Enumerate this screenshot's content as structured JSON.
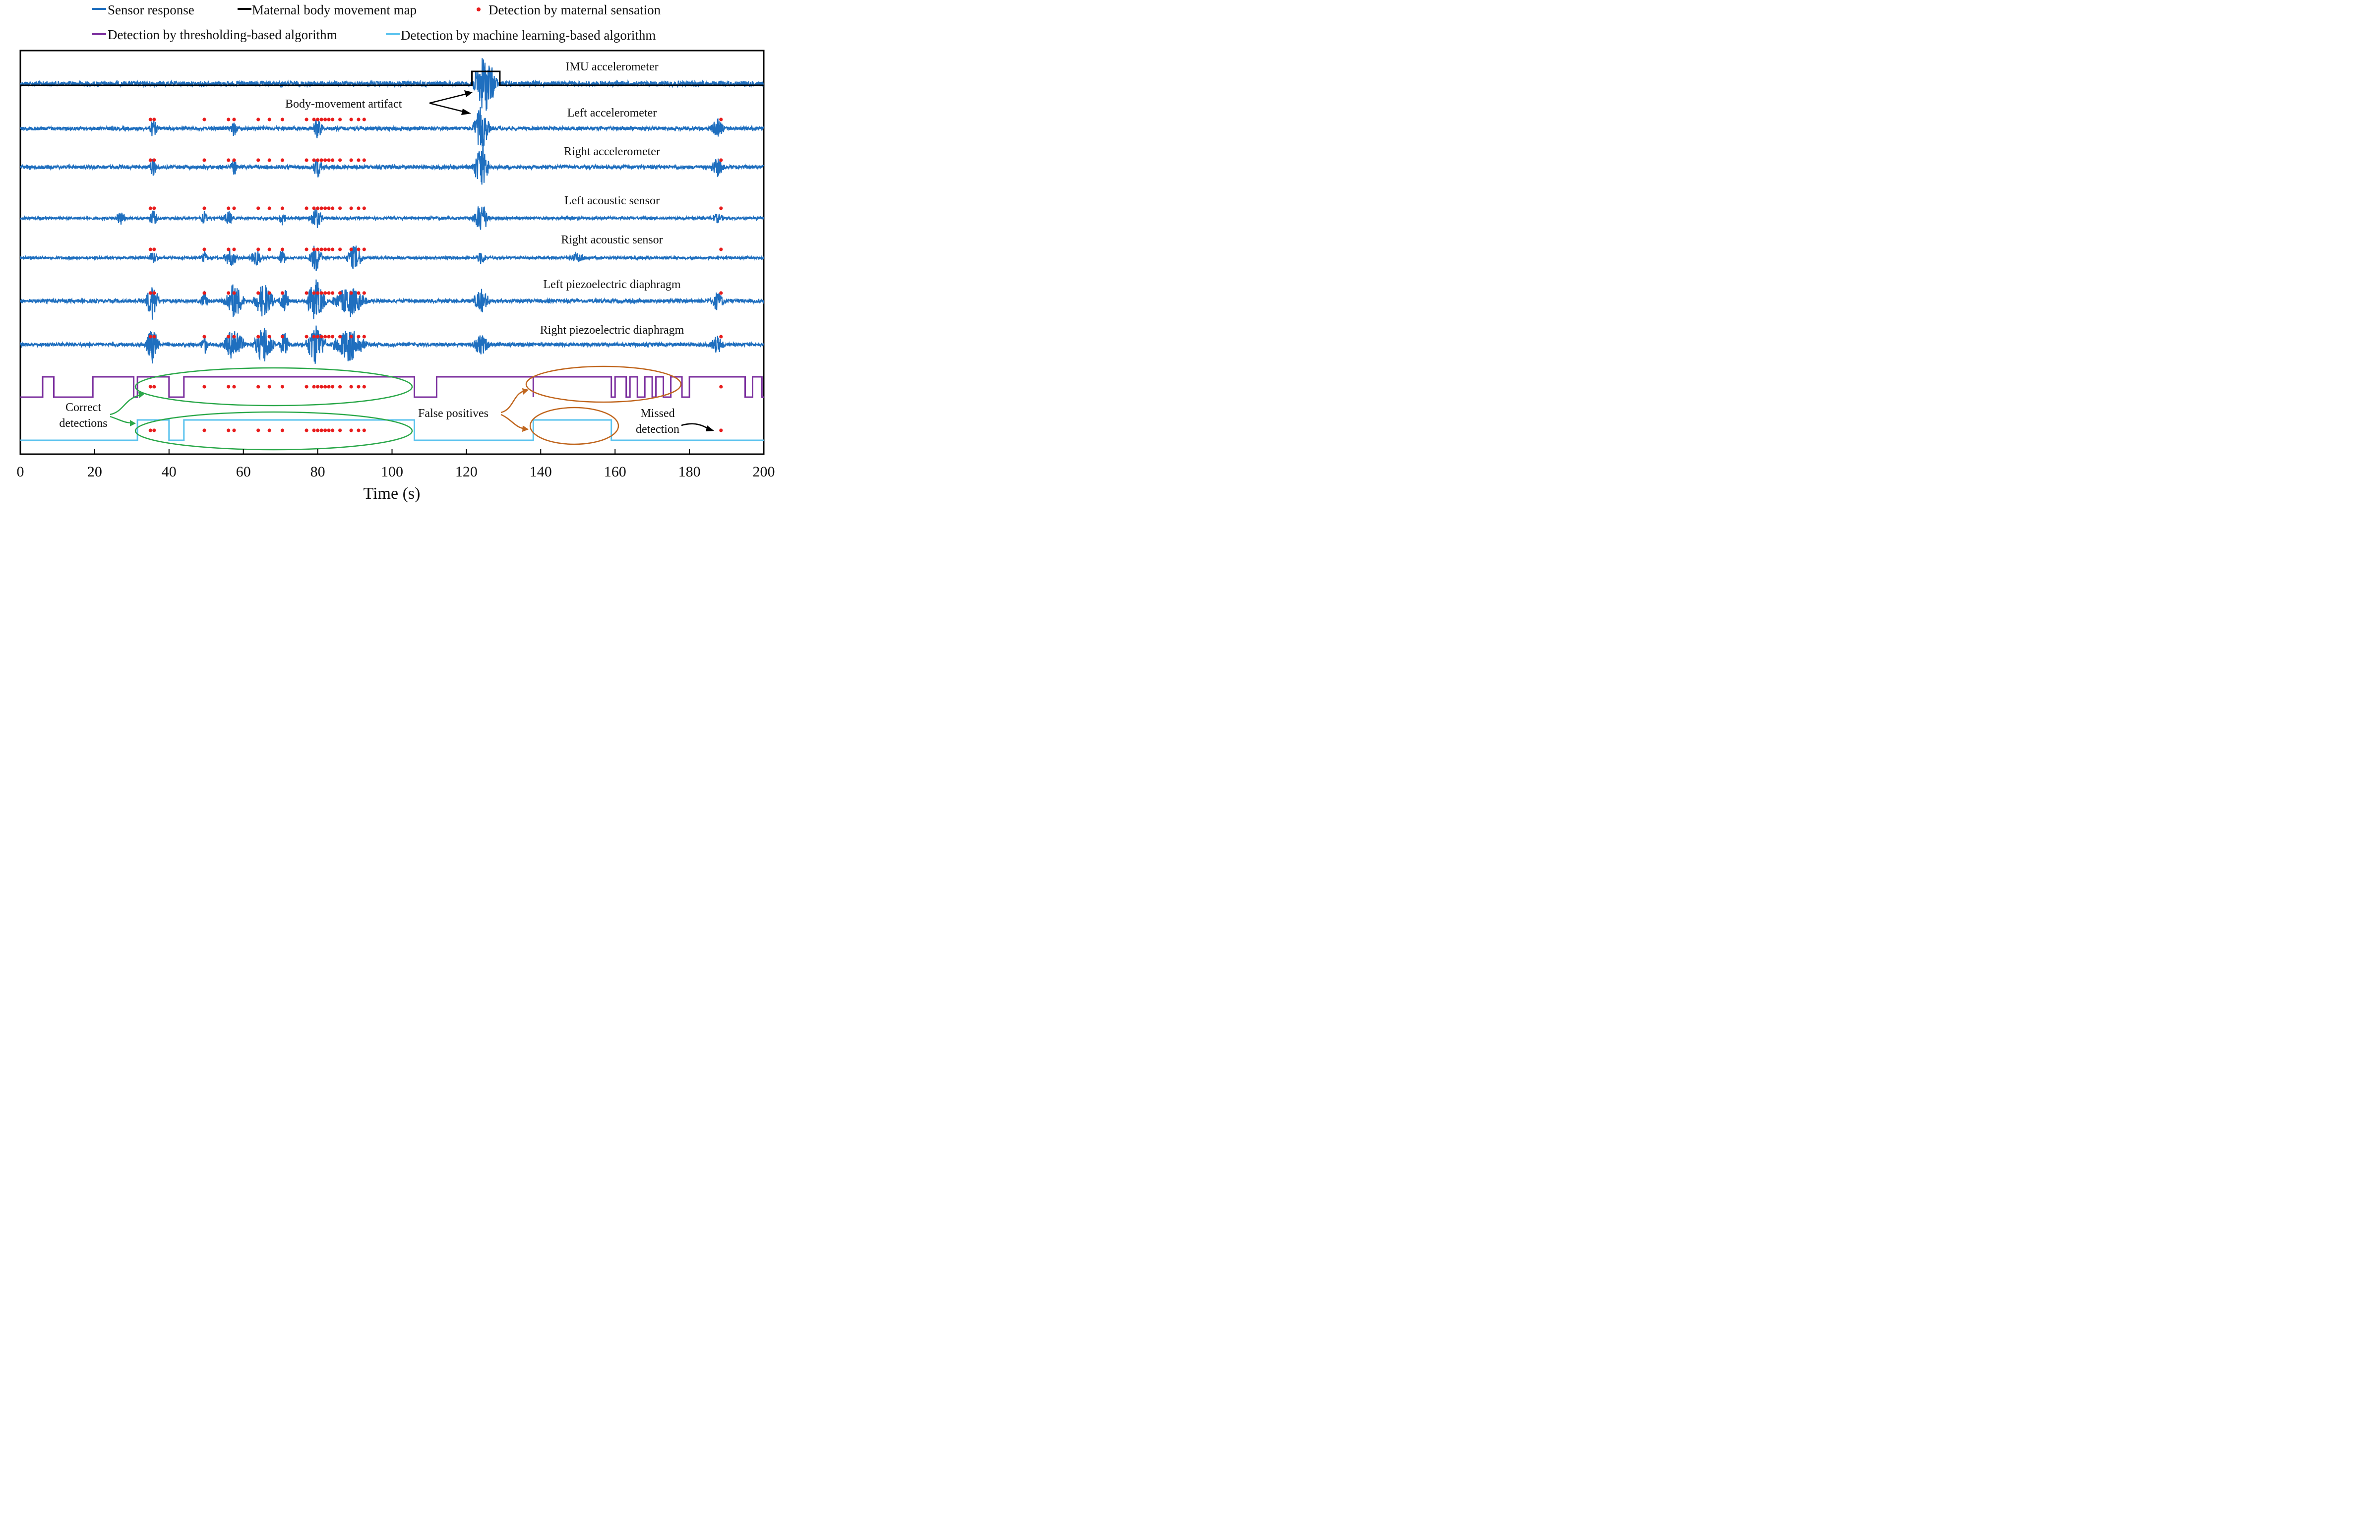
{
  "chart_data": {
    "type": "line",
    "xlabel": "Time (s)",
    "xlim": [
      0,
      200
    ],
    "x_ticks": [
      "0",
      "20",
      "40",
      "60",
      "80",
      "100",
      "120",
      "140",
      "160",
      "180",
      "200"
    ],
    "legend": {
      "placement": "top",
      "entries": [
        {
          "label": "Sensor response",
          "marker": "line",
          "color": "#1F6FBF"
        },
        {
          "label": "Maternal body movement map",
          "marker": "line",
          "color": "#000000"
        },
        {
          "label": "Detection by maternal sensation",
          "marker": "dot",
          "color": "#E81C1C"
        },
        {
          "label": "Detection by thresholding-based algorithm",
          "marker": "line",
          "color": "#7B2F9E"
        },
        {
          "label": "Detection by machine learning-based algorithm",
          "marker": "line",
          "color": "#5BC3EE"
        }
      ]
    },
    "channels": [
      {
        "label": "IMU accelerometer",
        "activity": [
          [
            122,
            128,
            3.0
          ]
        ]
      },
      {
        "label": "Left accelerometer",
        "activity": [
          [
            35,
            36.5,
            1.2
          ],
          [
            57,
            58,
            1.0
          ],
          [
            79,
            81,
            1.4
          ],
          [
            122,
            126,
            3.2
          ],
          [
            186,
            189,
            1.2
          ]
        ]
      },
      {
        "label": "Right accelerometer",
        "activity": [
          [
            35,
            36.5,
            1.2
          ],
          [
            57,
            58,
            1.0
          ],
          [
            79,
            81,
            1.4
          ],
          [
            122,
            126,
            3.2
          ],
          [
            186,
            189,
            1.2
          ]
        ]
      },
      {
        "label": "Left acoustic sensor",
        "activity": [
          [
            26,
            28,
            1.4
          ],
          [
            35,
            36.5,
            1.6
          ],
          [
            49,
            50,
            1.2
          ],
          [
            55,
            57,
            1.3
          ],
          [
            70,
            71,
            1.4
          ],
          [
            78,
            81,
            2.2
          ],
          [
            122,
            126,
            3.2
          ],
          [
            186,
            189,
            0.8
          ]
        ]
      },
      {
        "label": "Right acoustic sensor",
        "activity": [
          [
            35,
            36.5,
            1.2
          ],
          [
            49,
            50,
            1.0
          ],
          [
            55,
            58,
            1.8
          ],
          [
            62,
            65,
            1.4
          ],
          [
            70,
            71,
            2.2
          ],
          [
            78,
            81,
            3.0
          ],
          [
            88,
            92,
            2.6
          ],
          [
            123,
            125,
            1.2
          ],
          [
            148,
            152,
            0.9
          ]
        ]
      },
      {
        "label": "Left piezoelectric diaphragm",
        "activity": [
          [
            34,
            37,
            2.6
          ],
          [
            49,
            50,
            1.4
          ],
          [
            55,
            60,
            2.6
          ],
          [
            63,
            68,
            2.5
          ],
          [
            70,
            72,
            1.8
          ],
          [
            77,
            82,
            3.0
          ],
          [
            84,
            93,
            2.2
          ],
          [
            122,
            126,
            1.6
          ],
          [
            186,
            189,
            1.2
          ]
        ]
      },
      {
        "label": "Right piezoelectric diaphragm",
        "activity": [
          [
            34,
            37,
            2.6
          ],
          [
            49,
            50,
            1.4
          ],
          [
            55,
            60,
            2.6
          ],
          [
            63,
            68,
            2.8
          ],
          [
            70,
            72,
            1.8
          ],
          [
            77,
            82,
            3.0
          ],
          [
            84,
            93,
            2.4
          ],
          [
            122,
            126,
            1.4
          ],
          [
            186,
            189,
            1.2
          ]
        ]
      }
    ],
    "body_movement_map": [
      [
        121.5,
        129
      ]
    ],
    "maternal_sensation_times": [
      35,
      36,
      49.5,
      56,
      57.5,
      64,
      67,
      70.5,
      77,
      79,
      80,
      81,
      82,
      83,
      84,
      86,
      89,
      91,
      92.5,
      188.5
    ],
    "thresholding_detection": [
      [
        6,
        9
      ],
      [
        19.5,
        30.5
      ],
      [
        31.5,
        40
      ],
      [
        44,
        106
      ],
      [
        112,
        138
      ],
      [
        164,
        166
      ],
      [
        171,
        173
      ],
      [
        180,
        195
      ],
      [
        197,
        199.5
      ],
      [
        138,
        159
      ],
      [
        160,
        163
      ],
      [
        168,
        170
      ],
      [
        175,
        178
      ]
    ],
    "ml_detection": [
      [
        31.5,
        40
      ],
      [
        44,
        106
      ],
      [
        138,
        159
      ]
    ],
    "annotations": {
      "body_movement": "Body-movement  artifact",
      "correct": [
        "Correct",
        "detections"
      ],
      "false_pos": "False positives",
      "missed": [
        "Missed",
        "detection"
      ]
    }
  }
}
